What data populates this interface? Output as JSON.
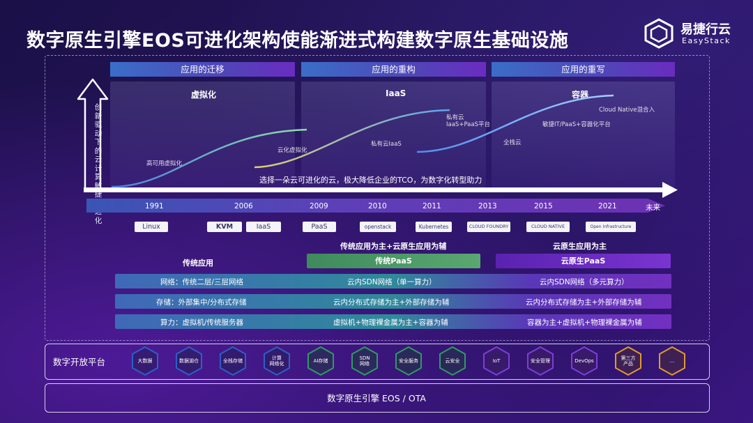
{
  "title": "数字原生引擎EOS可进化架构使能渐进式构建数字原生基础设施",
  "logo": {
    "cn": "易捷行云",
    "en": "EasyStack"
  },
  "phases": [
    {
      "header": "应用的迁移",
      "panel_title": "虚拟化",
      "notes": [
        "高可用虚拟化",
        "云化虚拟化"
      ]
    },
    {
      "header": "应用的重构",
      "panel_title": "IaaS",
      "notes": [
        "私有云IaaS",
        "私有云\nIaaS+PaaS平台"
      ]
    },
    {
      "header": "应用的重写",
      "panel_title": "容器",
      "notes": [
        "全栈云",
        "敏捷IT/PaaS+容器化平台",
        "Cloud Native混合入"
      ]
    }
  ],
  "vertical_axis_label": "创新驱动下的云计算敏捷式进化",
  "slogan": "选择一朵云可进化的云，极大降低企业的TCO，为数字化转型助力",
  "timeline_years": [
    "1991",
    "2006",
    "2009",
    "2010",
    "2011",
    "2013",
    "2015",
    "2021",
    "未来"
  ],
  "tech_logos": [
    "Linux",
    "KVM",
    "IaaS",
    "PaaS",
    "openstack",
    "Kubernetes",
    "CLOUD FOUNDRY",
    "CLOUD NATIVE",
    "Open Infrastructure"
  ],
  "sections": {
    "traditional": "传统应用",
    "mixed": "传统应用为主+云原生应用为辅",
    "cloud_native": "云原生应用为主"
  },
  "highlights": {
    "traditional_paas": "传统PaaS",
    "cloud_native_paas": "云原生PaaS"
  },
  "rows": [
    {
      "label": "网络：传统二层/三层网络",
      "mid": "云内SDN网络（单一算力）",
      "right": "云内SDN网络（多元算力）"
    },
    {
      "label": "存储：外部集中/分布式存储",
      "mid": "云内分布式存储为主+外部存储为辅",
      "right": "云内分布式存储为主+外部存储为辅"
    },
    {
      "label": "算力：虚拟机/传统服务器",
      "mid": "虚拟机+物理裸金属为主+容器为辅",
      "right": "容器为主+虚拟机+物理裸金属为辅"
    }
  ],
  "platform": {
    "label": "数字开放平台",
    "items": [
      "大数据",
      "数据湖仓",
      "全栈存储",
      "计算\n网络化",
      "AI存储",
      "SDN\n网络",
      "安全服务",
      "云安全",
      "IoT",
      "安全管理",
      "DevOps",
      "第三方\n产品",
      "..."
    ]
  },
  "engine": "数字原生引擎 EOS / OTA",
  "colors": {
    "traditional_paas": "#4f9a6a",
    "cloud_native_paas": "#6b2cc4",
    "header_left": "#3a65c0",
    "header_right": "#6a2cc0",
    "hex_blue": "#2d5fc8",
    "hex_green": "#2f9a63",
    "hex_purple": "#7b3fd6",
    "hex_orange": "#e29a2a"
  }
}
